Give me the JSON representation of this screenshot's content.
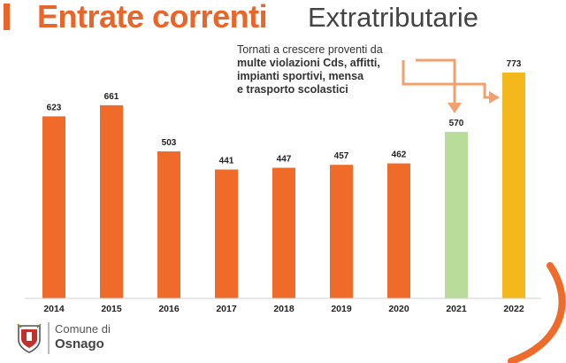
{
  "header": {
    "title_main": "Entrate correnti",
    "title_sub": "Extratributarie"
  },
  "annotation": {
    "line1": "Tornati a crescere proventi da",
    "line2": "multe violazioni Cds, affitti,",
    "line3": "impianti sportivi, mensa",
    "line4": "e trasporto scolastici"
  },
  "footer": {
    "line1": "Comune di",
    "line2": "Osnago"
  },
  "colors": {
    "accent": "#e8662a",
    "bar_default": "#f06a2a",
    "bar_2021": "#b9dc9a",
    "bar_2022": "#f4b81d",
    "annotation_arrow": "#f2a06e"
  },
  "chart_data": {
    "type": "bar",
    "title": "",
    "xlabel": "",
    "ylabel": "",
    "categories": [
      "2014",
      "2015",
      "2016",
      "2017",
      "2018",
      "2019",
      "2020",
      "2021",
      "2022"
    ],
    "values": [
      623,
      661,
      503,
      441,
      447,
      457,
      462,
      570,
      773
    ],
    "data_labels": [
      "623",
      "661",
      "503",
      "441",
      "447",
      "457",
      "462",
      "570",
      "773"
    ],
    "bar_colors": [
      "#f06a2a",
      "#f06a2a",
      "#f06a2a",
      "#f06a2a",
      "#f06a2a",
      "#f06a2a",
      "#f06a2a",
      "#b9dc9a",
      "#f4b81d"
    ],
    "ylim": [
      0,
      800
    ],
    "grid": false,
    "legend": "none"
  }
}
